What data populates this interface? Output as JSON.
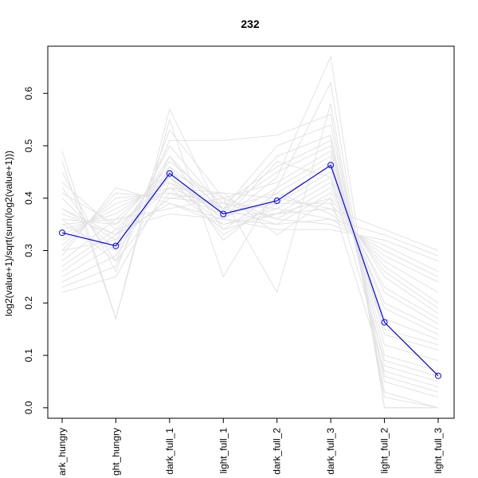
{
  "chart_data": {
    "type": "line",
    "title": "232",
    "xlabel": "",
    "ylabel": "log2(value+1)/sqrt(sum(log2(value+1)))",
    "categories": [
      "dark_hungry",
      "light_hungry",
      "dark_full_1",
      "light_full_1",
      "dark_full_2",
      "dark_full_3",
      "light_full_2",
      "light_full_3"
    ],
    "category_labels_shown": [
      "ark_hungry",
      "ght_hungry",
      "dark_full_1",
      "light_full_1",
      "dark_full_2",
      "dark_full_3",
      "light_full_2",
      "light_full_3"
    ],
    "y_ticks": [
      0.0,
      0.1,
      0.2,
      0.3,
      0.4,
      0.5,
      0.6
    ],
    "y_tick_labels": [
      "0.0",
      "0.1",
      "0.2",
      "0.3",
      "0.4",
      "0.5",
      "0.6"
    ],
    "ylim": [
      -0.02,
      0.69
    ],
    "grid": false,
    "legend": "none",
    "series": [
      {
        "values": [
          0.334,
          0.309,
          0.447,
          0.37,
          0.395,
          0.463,
          0.163,
          0.061
        ],
        "color": "#0000ff",
        "highlight": true
      }
    ],
    "background_series": [
      {
        "values": [
          0.49,
          0.17,
          0.57,
          0.36,
          0.44,
          0.67,
          0.0,
          0.0
        ]
      },
      {
        "values": [
          0.47,
          0.17,
          0.55,
          0.25,
          0.42,
          0.62,
          0.0,
          0.0
        ]
      },
      {
        "values": [
          0.45,
          0.26,
          0.53,
          0.4,
          0.22,
          0.58,
          0.02,
          0.0
        ]
      },
      {
        "values": [
          0.42,
          0.28,
          0.51,
          0.51,
          0.52,
          0.56,
          0.03,
          0.0
        ]
      },
      {
        "values": [
          0.4,
          0.3,
          0.5,
          0.38,
          0.5,
          0.54,
          0.05,
          0.02
        ]
      },
      {
        "values": [
          0.38,
          0.32,
          0.48,
          0.37,
          0.48,
          0.52,
          0.06,
          0.03
        ]
      },
      {
        "values": [
          0.37,
          0.33,
          0.47,
          0.39,
          0.46,
          0.51,
          0.08,
          0.05
        ]
      },
      {
        "values": [
          0.36,
          0.35,
          0.46,
          0.38,
          0.45,
          0.5,
          0.1,
          0.07
        ]
      },
      {
        "values": [
          0.35,
          0.36,
          0.45,
          0.4,
          0.43,
          0.49,
          0.12,
          0.09
        ]
      },
      {
        "values": [
          0.34,
          0.37,
          0.44,
          0.36,
          0.42,
          0.48,
          0.14,
          0.11
        ]
      },
      {
        "values": [
          0.33,
          0.38,
          0.43,
          0.38,
          0.41,
          0.47,
          0.15,
          0.12
        ]
      },
      {
        "values": [
          0.32,
          0.39,
          0.42,
          0.41,
          0.4,
          0.46,
          0.17,
          0.13
        ]
      },
      {
        "values": [
          0.31,
          0.4,
          0.41,
          0.37,
          0.39,
          0.45,
          0.19,
          0.14
        ]
      },
      {
        "values": [
          0.3,
          0.41,
          0.4,
          0.39,
          0.38,
          0.44,
          0.2,
          0.15
        ]
      },
      {
        "values": [
          0.29,
          0.42,
          0.39,
          0.35,
          0.37,
          0.43,
          0.22,
          0.16
        ]
      },
      {
        "values": [
          0.28,
          0.36,
          0.38,
          0.4,
          0.36,
          0.42,
          0.23,
          0.17
        ]
      },
      {
        "values": [
          0.27,
          0.34,
          0.37,
          0.36,
          0.35,
          0.41,
          0.25,
          0.18
        ]
      },
      {
        "values": [
          0.26,
          0.33,
          0.42,
          0.34,
          0.37,
          0.4,
          0.26,
          0.19
        ]
      },
      {
        "values": [
          0.25,
          0.31,
          0.44,
          0.33,
          0.39,
          0.39,
          0.27,
          0.2
        ]
      },
      {
        "values": [
          0.24,
          0.29,
          0.46,
          0.32,
          0.4,
          0.38,
          0.28,
          0.22
        ]
      },
      {
        "values": [
          0.23,
          0.27,
          0.48,
          0.34,
          0.41,
          0.37,
          0.29,
          0.24
        ]
      },
      {
        "values": [
          0.22,
          0.25,
          0.43,
          0.35,
          0.38,
          0.36,
          0.3,
          0.25
        ]
      },
      {
        "values": [
          0.36,
          0.28,
          0.41,
          0.39,
          0.36,
          0.35,
          0.31,
          0.26
        ]
      },
      {
        "values": [
          0.38,
          0.33,
          0.39,
          0.36,
          0.34,
          0.34,
          0.32,
          0.28
        ]
      },
      {
        "values": [
          0.41,
          0.35,
          0.42,
          0.38,
          0.35,
          0.36,
          0.33,
          0.29
        ]
      },
      {
        "values": [
          0.43,
          0.34,
          0.44,
          0.37,
          0.37,
          0.38,
          0.34,
          0.3
        ]
      },
      {
        "values": [
          0.3,
          0.32,
          0.4,
          0.41,
          0.33,
          0.4,
          0.07,
          0.04
        ]
      },
      {
        "values": [
          0.35,
          0.3,
          0.45,
          0.36,
          0.47,
          0.44,
          0.09,
          0.06
        ]
      }
    ]
  }
}
